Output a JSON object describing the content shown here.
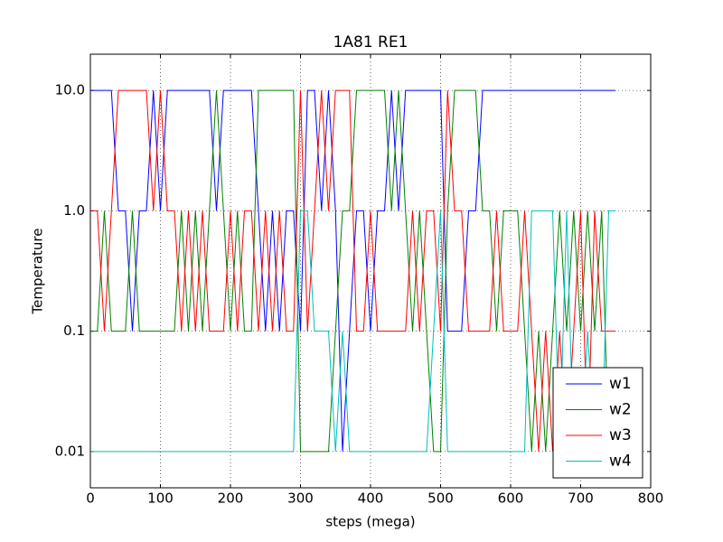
{
  "chart_data": {
    "type": "line",
    "title": "1A81 RE1",
    "xlabel": "steps (mega)",
    "ylabel": "Temperature",
    "x": [
      0,
      10,
      20,
      30,
      40,
      50,
      60,
      70,
      80,
      90,
      100,
      110,
      120,
      130,
      140,
      150,
      160,
      170,
      180,
      190,
      200,
      210,
      220,
      230,
      240,
      250,
      260,
      270,
      280,
      290,
      300,
      310,
      320,
      330,
      340,
      350,
      360,
      370,
      380,
      390,
      400,
      410,
      420,
      430,
      440,
      450,
      460,
      470,
      480,
      490,
      500,
      510,
      520,
      530,
      540,
      550,
      560,
      570,
      580,
      590,
      600,
      610,
      620,
      630,
      640,
      650,
      660,
      670,
      680,
      690,
      700,
      710,
      720,
      730,
      740,
      750
    ],
    "series": [
      {
        "name": "w1",
        "color": "#0000ff",
        "values": [
          10,
          10,
          10,
          10,
          1,
          1,
          0.1,
          1,
          1,
          10,
          1,
          10,
          10,
          10,
          10,
          10,
          10,
          10,
          1,
          10,
          10,
          10,
          10,
          10,
          1,
          0.1,
          1,
          0.1,
          1,
          1,
          0.1,
          10,
          10,
          1,
          10,
          1,
          0.01,
          0.1,
          1,
          1,
          0.1,
          1,
          1,
          10,
          1,
          10,
          10,
          10,
          10,
          10,
          10,
          0.1,
          0.1,
          0.1,
          1,
          1,
          10,
          10,
          10,
          10,
          10,
          10,
          10,
          10,
          10,
          10,
          10,
          10,
          10,
          10,
          10,
          10,
          10,
          10,
          10,
          10
        ]
      },
      {
        "name": "w2",
        "color": "#008000",
        "values": [
          0.1,
          0.1,
          1,
          0.1,
          0.1,
          0.1,
          1,
          0.1,
          0.1,
          0.1,
          0.1,
          0.1,
          0.1,
          1,
          0.1,
          1,
          0.1,
          1,
          10,
          1,
          0.1,
          1,
          0.1,
          0.1,
          10,
          10,
          10,
          10,
          10,
          10,
          0.01,
          0.01,
          0.01,
          0.01,
          0.01,
          0.1,
          1,
          1,
          10,
          10,
          10,
          10,
          10,
          1,
          10,
          1,
          0.1,
          1,
          0.1,
          0.01,
          0.01,
          1,
          10,
          10,
          10,
          10,
          1,
          1,
          0.1,
          1,
          1,
          1,
          0.1,
          0.01,
          0.1,
          0.01,
          0.1,
          1,
          0.1,
          1,
          0.1,
          1,
          0.1,
          1,
          0.01,
          0.01
        ]
      },
      {
        "name": "w3",
        "color": "#ff0000",
        "values": [
          1,
          1,
          0.1,
          1,
          10,
          10,
          10,
          10,
          10,
          1,
          10,
          1,
          1,
          0.1,
          1,
          0.1,
          1,
          0.1,
          0.1,
          0.1,
          1,
          0.1,
          1,
          1,
          0.1,
          1,
          0.1,
          1,
          0.1,
          0.1,
          10,
          0.1,
          1,
          10,
          1,
          10,
          10,
          10,
          0.1,
          0.1,
          1,
          0.1,
          0.1,
          0.1,
          0.1,
          0.1,
          1,
          0.1,
          1,
          1,
          0.1,
          10,
          1,
          1,
          0.1,
          0.1,
          0.1,
          0.1,
          1,
          0.1,
          0.1,
          0.1,
          1,
          0.1,
          0.01,
          0.1,
          0.01,
          0.1,
          0.01,
          0.1,
          1,
          0.01,
          1,
          0.1,
          0.1,
          0.1
        ]
      },
      {
        "name": "w4",
        "color": "#00bfbf",
        "values": [
          0.01,
          0.01,
          0.01,
          0.01,
          0.01,
          0.01,
          0.01,
          0.01,
          0.01,
          0.01,
          0.01,
          0.01,
          0.01,
          0.01,
          0.01,
          0.01,
          0.01,
          0.01,
          0.01,
          0.01,
          0.01,
          0.01,
          0.01,
          0.01,
          0.01,
          0.01,
          0.01,
          0.01,
          0.01,
          0.01,
          1,
          1,
          0.1,
          0.1,
          0.1,
          0.01,
          0.1,
          0.01,
          0.01,
          0.01,
          0.01,
          0.01,
          0.01,
          0.01,
          0.01,
          0.01,
          0.01,
          0.01,
          0.01,
          0.1,
          1,
          0.01,
          0.01,
          0.01,
          0.01,
          0.01,
          0.01,
          0.01,
          0.01,
          0.01,
          0.01,
          0.01,
          0.01,
          1,
          1,
          1,
          1,
          0.01,
          1,
          0.01,
          0.01,
          0.1,
          0.01,
          0.01,
          1,
          1
        ]
      }
    ],
    "xlim": [
      0,
      800
    ],
    "xticks": [
      0,
      100,
      200,
      300,
      400,
      500,
      600,
      700,
      800
    ],
    "ylim": [
      0.005,
      20
    ],
    "yticks": [
      {
        "value": 10,
        "label": "10.0"
      },
      {
        "value": 1,
        "label": "1.0"
      },
      0.1,
      0.01
    ],
    "ylog": true,
    "grid": true,
    "legend": "lower right"
  }
}
